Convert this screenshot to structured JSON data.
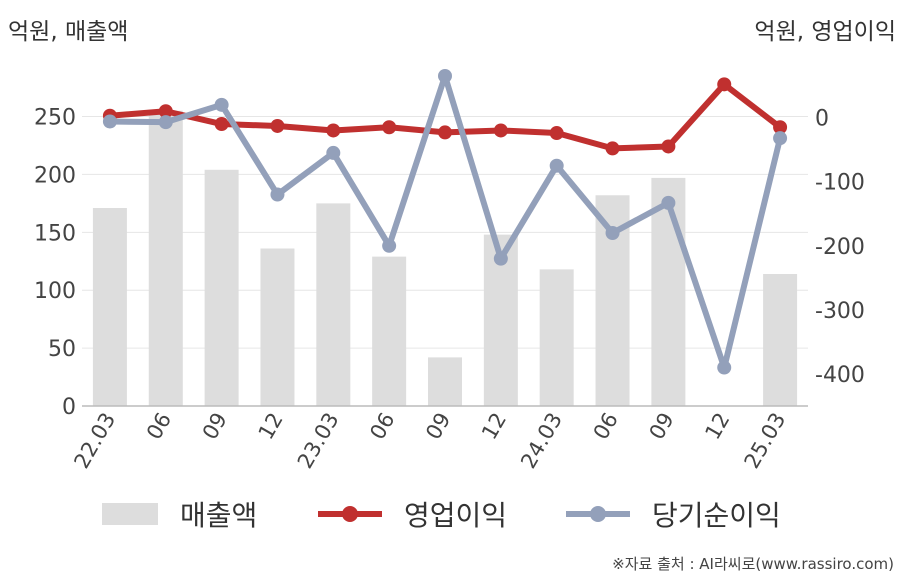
{
  "units": {
    "left": "억원, 매출액",
    "right": "억원, 영업이익"
  },
  "chart_data": {
    "type": "bar",
    "categories": [
      "22.03",
      "06",
      "09",
      "12",
      "23.03",
      "06",
      "09",
      "12",
      "24.03",
      "06",
      "09",
      "12",
      "25.03"
    ],
    "left_axis": {
      "ylim": [
        0,
        285
      ],
      "ticks": [
        0,
        50,
        100,
        150,
        200,
        250
      ]
    },
    "right_axis": {
      "ylim": [
        -450,
        65
      ],
      "ticks": [
        0,
        -100,
        -200,
        -300,
        -400
      ]
    },
    "grid": true,
    "series": [
      {
        "name": "매출액",
        "type": "bar",
        "axis": "left",
        "color": "#dddddd",
        "values": [
          171,
          255,
          204,
          136,
          175,
          129,
          42,
          148,
          118,
          182,
          197,
          0,
          114
        ]
      },
      {
        "name": "영업이익",
        "type": "line",
        "axis": "right",
        "color": "#c0302f",
        "values": [
          3,
          10,
          -10,
          -13,
          -20,
          -15,
          -23,
          -20,
          -24,
          -48,
          -45,
          52,
          -15
        ]
      },
      {
        "name": "당기순이익",
        "type": "line",
        "axis": "right",
        "color": "#93a0ba",
        "values": [
          -6,
          -7,
          20,
          -120,
          -55,
          -200,
          65,
          -220,
          -75,
          -180,
          -133,
          -390,
          -32
        ]
      }
    ]
  },
  "source": "※자료 출처 : AI라씨로(www.rassiro.com)"
}
